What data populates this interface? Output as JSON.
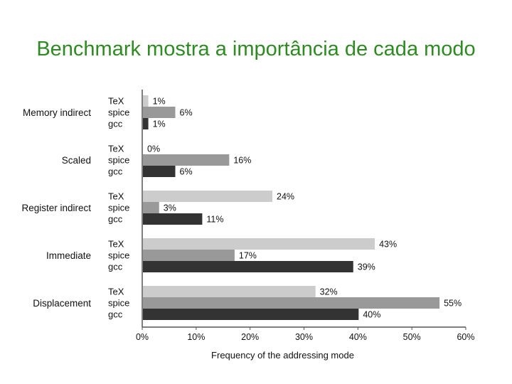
{
  "slide": {
    "title": "Benchmark mostra a importância de cada modo",
    "title_color": "#2e8b22"
  },
  "chart_data": {
    "type": "bar",
    "orientation": "horizontal",
    "categories": [
      "Memory indirect",
      "Scaled",
      "Register indirect",
      "Immediate",
      "Displacement"
    ],
    "series": [
      {
        "name": "TeX",
        "values": [
          1,
          0,
          24,
          43,
          32
        ],
        "color": "#cccccc"
      },
      {
        "name": "spice",
        "values": [
          6,
          16,
          3,
          17,
          55
        ],
        "color": "#999999"
      },
      {
        "name": "gcc",
        "values": [
          1,
          6,
          11,
          39,
          40
        ],
        "color": "#333333"
      }
    ],
    "data_labels": [
      [
        "1%",
        "6%",
        "1%"
      ],
      [
        "0%",
        "16%",
        "6%"
      ],
      [
        "24%",
        "3%",
        "11%"
      ],
      [
        "43%",
        "17%",
        "39%"
      ],
      [
        "32%",
        "55%",
        "40%"
      ]
    ],
    "xticks": [
      "0%",
      "10%",
      "20%",
      "30%",
      "40%",
      "50%",
      "60%"
    ],
    "xlim": [
      0,
      60
    ],
    "xlabel": "Frequency of the addressing mode",
    "ylabel": "",
    "grid": false,
    "legend": "series names shown beside each bar"
  }
}
